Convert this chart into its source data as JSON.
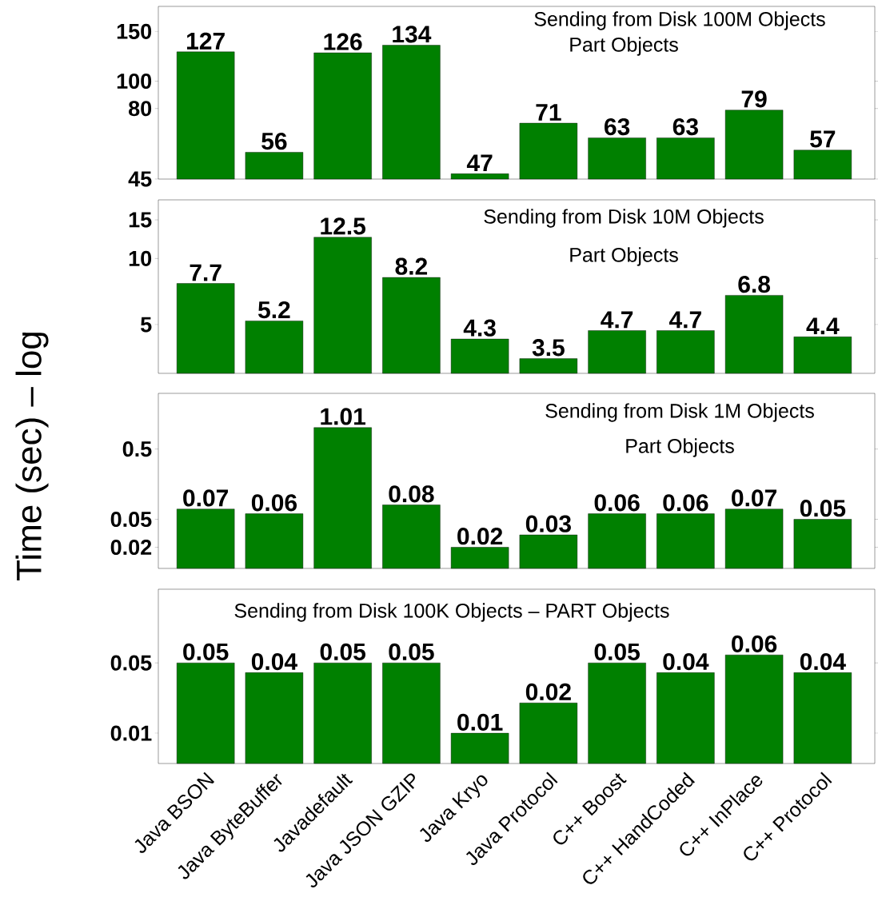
{
  "chart_data": [
    {
      "type": "bar",
      "title": "Sending from Disk 100M Objects",
      "subtitle": "Part Objects",
      "categories": [
        null,
        null,
        null,
        null,
        null,
        null,
        null,
        null,
        null,
        null
      ],
      "values": [
        127,
        56,
        126,
        134,
        47,
        71,
        63,
        63,
        79,
        57
      ],
      "color": "#008000",
      "data_labels": true,
      "log": true,
      "ylim": [
        45,
        184
      ],
      "yticks": [
        45,
        80,
        100,
        150
      ],
      "tick_labels": "y"
    },
    {
      "type": "bar",
      "title": "Sending from Disk 10M Objects",
      "subtitle": "Part Objects",
      "categories": [
        null,
        null,
        null,
        null,
        null,
        null,
        null,
        null,
        null,
        null
      ],
      "values": [
        7.7,
        5.2,
        12.5,
        8.2,
        4.3,
        3.5,
        4.7,
        4.7,
        6.8,
        4.4
      ],
      "color": "#008000",
      "data_labels": true,
      "log": true,
      "ylim": [
        3,
        18.5
      ],
      "yticks": [
        5,
        10,
        15
      ],
      "tick_labels": "y"
    },
    {
      "type": "bar",
      "title": "Sending from Disk 1M Objects",
      "subtitle": "Part Objects",
      "ylabel": "Time (sec) – log",
      "categories": [
        null,
        null,
        null,
        null,
        null,
        null,
        null,
        null,
        null,
        null
      ],
      "values": [
        0.07,
        0.06,
        1.01,
        0.08,
        0.02,
        0.03,
        0.06,
        0.06,
        0.07,
        0.05
      ],
      "color": "#008000",
      "data_labels": true,
      "log": true,
      "ylim": [
        0.01,
        3.1
      ],
      "yticks": [
        0.02,
        0.05,
        0.5
      ],
      "tick_labels": "y"
    },
    {
      "type": "bar",
      "title": "Sending from Disk 100K Objects – PART Objects",
      "categories": [
        "Java BSON",
        "Java ByteBuffer",
        "Javadefault",
        "Java JSON GZIP",
        "Java Kryo",
        "Java Protocol",
        "C++ Boost",
        "C++ HandCoded",
        "C++ InPlace",
        "C++ Protocol"
      ],
      "values": [
        0.05,
        0.04,
        0.05,
        0.05,
        0.01,
        0.02,
        0.05,
        0.04,
        0.06,
        0.04
      ],
      "color": "#008000",
      "data_labels": true,
      "log": true,
      "ylim": [
        0.005,
        0.27
      ],
      "yticks": [
        0.01,
        0.05
      ]
    }
  ]
}
